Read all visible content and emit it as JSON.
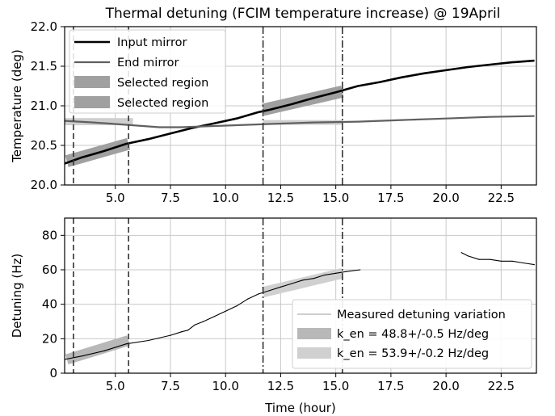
{
  "chart_data": [
    {
      "type": "line",
      "title": "Thermal detuning (FCIM temperature increase) @ 19April",
      "xlabel": "",
      "ylabel": "Temperature (deg)",
      "xlim": [
        2.7,
        24.1
      ],
      "ylim": [
        20.0,
        22.0
      ],
      "xticks": [
        "5.0",
        "7.5",
        "10.0",
        "12.5",
        "15.0",
        "17.5",
        "20.0",
        "22.5"
      ],
      "yticks": [
        "20.0",
        "20.5",
        "21.0",
        "21.5",
        "22.0"
      ],
      "grid": true,
      "legend": "top-left",
      "vlines": [
        {
          "x": 3.1,
          "style": "dashed"
        },
        {
          "x": 5.6,
          "style": "dashed"
        },
        {
          "x": 11.7,
          "style": "dashdot"
        },
        {
          "x": 15.3,
          "style": "dashdot"
        }
      ],
      "series": [
        {
          "name": "Input mirror",
          "color": "#000000",
          "x": [
            2.7,
            3.5,
            4.5,
            5.5,
            6.5,
            7.5,
            8.5,
            9.5,
            10.5,
            11.5,
            12.0,
            13.0,
            14.0,
            15.0,
            16.0,
            17.0,
            18.0,
            19.0,
            20.0,
            21.0,
            22.0,
            23.0,
            24.0
          ],
          "y": [
            20.27,
            20.35,
            20.43,
            20.52,
            20.58,
            20.65,
            20.72,
            20.78,
            20.84,
            20.92,
            20.95,
            21.02,
            21.1,
            21.17,
            21.25,
            21.3,
            21.36,
            21.41,
            21.45,
            21.49,
            21.52,
            21.55,
            21.57
          ]
        },
        {
          "name": "End mirror",
          "color": "#606060",
          "x": [
            2.7,
            4.0,
            5.0,
            6.0,
            7.0,
            8.0,
            9.0,
            10.0,
            11.0,
            12.0,
            14.0,
            16.0,
            18.0,
            20.0,
            22.0,
            24.0
          ],
          "y": [
            20.81,
            20.79,
            20.77,
            20.75,
            20.73,
            20.73,
            20.74,
            20.75,
            20.76,
            20.77,
            20.79,
            20.8,
            20.82,
            20.84,
            20.86,
            20.87
          ]
        }
      ],
      "selected_regions": [
        {
          "name": "Selected region",
          "color": "#a0a0a0",
          "x": [
            2.8,
            5.6
          ],
          "y_start": 20.3,
          "y_end": 20.52
        },
        {
          "name": "Selected region",
          "color": "#a0a0a0",
          "x": [
            11.7,
            15.3
          ],
          "y_start": 20.95,
          "y_end": 21.18
        }
      ],
      "end_mirror_bands": [
        {
          "color": "#cfcfcf",
          "x": [
            2.7,
            5.8
          ],
          "y": 20.8,
          "halfwidth": 0.045
        },
        {
          "color": "#cfcfcf",
          "x": [
            11.7,
            15.3
          ],
          "y": 20.79,
          "halfwidth": 0.03
        }
      ]
    },
    {
      "type": "line",
      "title": "",
      "xlabel": "Time (hour)",
      "ylabel": "Detuning (Hz)",
      "xlim": [
        2.7,
        24.1
      ],
      "ylim": [
        0,
        90
      ],
      "xticks": [
        "5.0",
        "7.5",
        "10.0",
        "12.5",
        "15.0",
        "17.5",
        "20.0",
        "22.5"
      ],
      "yticks": [
        "0",
        "20",
        "40",
        "60",
        "80"
      ],
      "grid": true,
      "legend": "bottom-right",
      "vlines": [
        {
          "x": 3.1,
          "style": "dashed"
        },
        {
          "x": 5.6,
          "style": "dashed"
        },
        {
          "x": 11.7,
          "style": "dashdot"
        },
        {
          "x": 15.3,
          "style": "dashdot"
        }
      ],
      "series": [
        {
          "name": "Measured detuning variation",
          "color": "#000000",
          "x": [
            2.7,
            3.5,
            4.5,
            5.5,
            6.5,
            7.5,
            8.0,
            8.3,
            8.6,
            9.0,
            9.5,
            10.0,
            10.5,
            11.0,
            11.5,
            12.0,
            12.5,
            13.0,
            13.5,
            14.0,
            14.5,
            15.0,
            15.5,
            16.1
          ],
          "y": [
            8,
            10,
            13,
            17,
            19,
            22,
            24,
            25,
            28,
            30,
            33,
            36,
            39,
            43,
            46,
            48,
            50,
            52,
            54,
            55,
            57,
            58,
            59,
            60
          ]
        },
        {
          "name": "",
          "color": "#000000",
          "x": [
            20.7,
            21.0,
            21.5,
            22.0,
            22.5,
            23.0,
            23.5,
            24.0
          ],
          "y": [
            70,
            68,
            66,
            66,
            65,
            65,
            64,
            63
          ]
        }
      ],
      "fits": [
        {
          "name": "k_en = 48.8+/-0.5 Hz/deg",
          "color": "#b8b8b8",
          "x": [
            2.8,
            5.6
          ],
          "y_start": 8,
          "y_end": 19
        },
        {
          "name": "k_en = 53.9+/-0.2 Hz/deg",
          "color": "#d0d0d0",
          "x": [
            11.7,
            15.3
          ],
          "y_start": 47,
          "y_end": 58
        }
      ]
    }
  ]
}
